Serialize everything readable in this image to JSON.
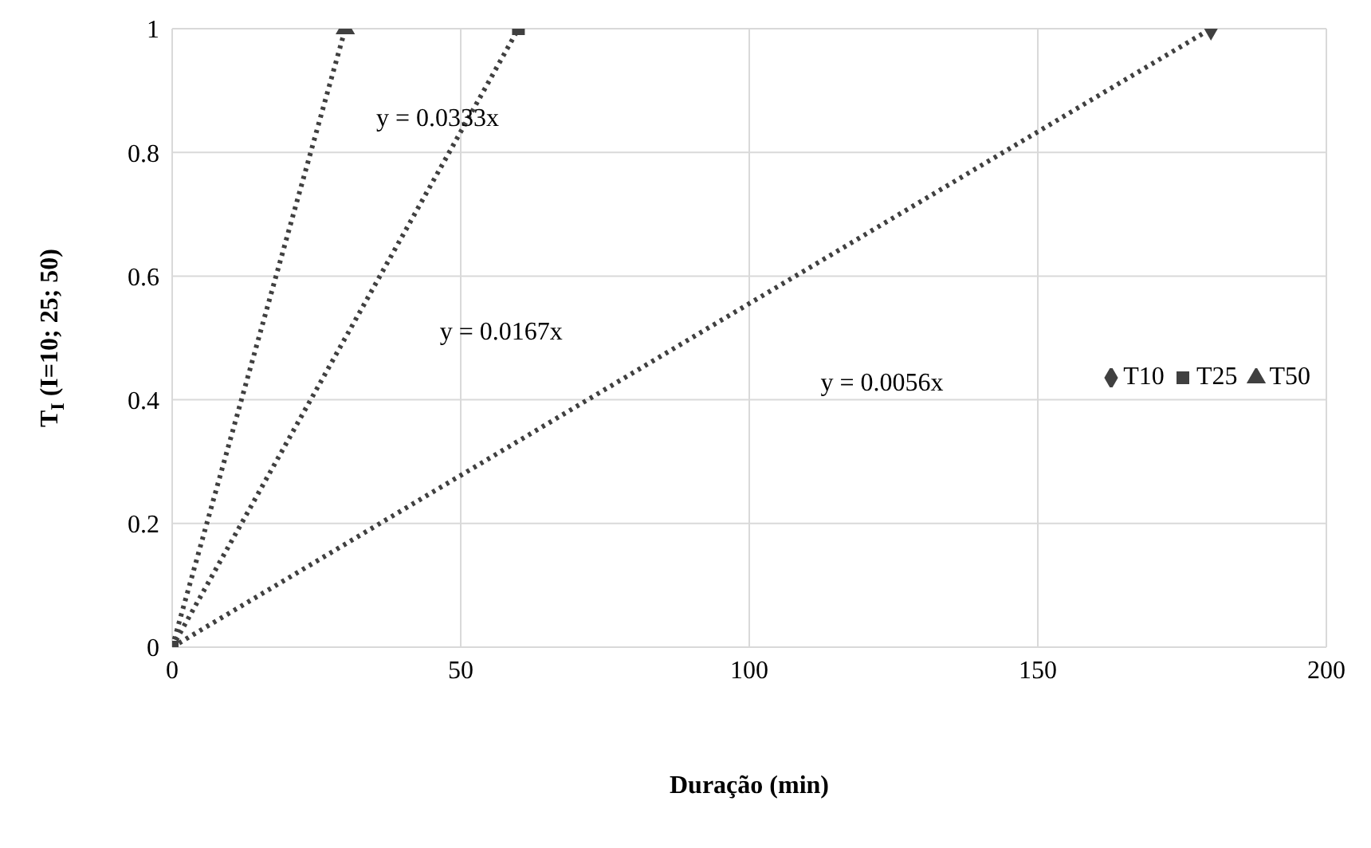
{
  "chart_data": {
    "type": "scatter",
    "xlabel": "Duração (min)",
    "ylabel": "T$_{I}$ (I=10; 25; 50)",
    "xlim": [
      0,
      200
    ],
    "xticks": [
      0,
      50,
      100,
      150,
      200
    ],
    "ylim": [
      0,
      1
    ],
    "yticks": [
      0,
      0.2,
      0.4,
      0.6,
      0.8,
      1
    ],
    "grid": true,
    "legend": "right",
    "series": [
      {
        "type": "line",
        "line_style": "dotted",
        "color": "#404040",
        "x": [
          0,
          180
        ],
        "values": [
          0,
          1
        ]
      },
      {
        "type": "line",
        "line_style": "dotted",
        "color": "#404040",
        "x": [
          0,
          60
        ],
        "values": [
          0,
          1
        ]
      },
      {
        "type": "line",
        "line_style": "dotted",
        "color": "#404040",
        "x": [
          0,
          30
        ],
        "values": [
          0,
          1
        ]
      },
      {
        "name": "T10",
        "marker": "diamond",
        "color": "#404040",
        "x": [
          180
        ],
        "values": [
          1
        ]
      },
      {
        "name": "T25",
        "marker": "square",
        "color": "#404040",
        "x": [
          0,
          60
        ],
        "values": [
          0,
          1
        ]
      },
      {
        "name": "T50",
        "marker": "triangle",
        "color": "#404040",
        "x": [
          30
        ],
        "values": [
          1
        ]
      }
    ],
    "annotations": [
      "y = 0.0333x",
      "y = 0.0167x",
      "y = 0.0056x"
    ]
  }
}
